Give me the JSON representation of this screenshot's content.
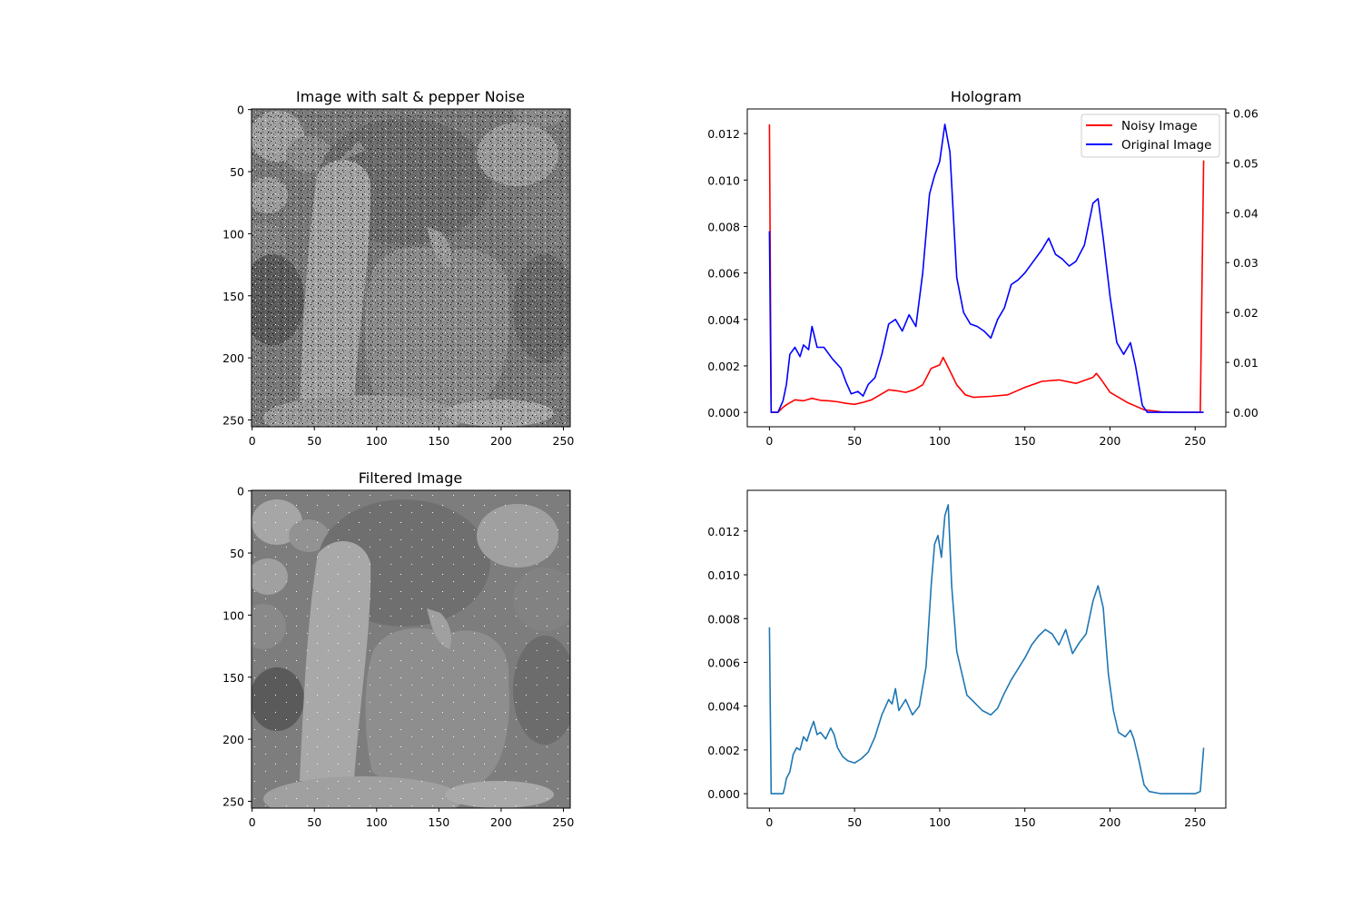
{
  "figure": {
    "top_left_title": "Image with salt & pepper Noise",
    "bottom_left_title": "Filtered Image",
    "top_right_title": "Hologram",
    "bottom_right_title": ""
  },
  "chart_data": [
    {
      "type": "image",
      "title": "Image with salt & pepper Noise",
      "image_description_note": "",
      "x_ticks": [
        "0",
        "50",
        "100",
        "150",
        "200",
        "250"
      ],
      "y_ticks": [
        "0",
        "50",
        "100",
        "150",
        "200",
        "250"
      ],
      "xlim": [
        -0.5,
        255.5
      ],
      "ylim": [
        255.5,
        -0.5
      ],
      "noise": "salt-and-pepper"
    },
    {
      "type": "line",
      "title": "Hologram",
      "twin_axes": true,
      "legend_position": "top-right",
      "x_ticks": [
        "0",
        "50",
        "100",
        "150",
        "200",
        "250"
      ],
      "left_y_ticks": [
        "0.000",
        "0.002",
        "0.004",
        "0.006",
        "0.008",
        "0.010",
        "0.012"
      ],
      "right_y_ticks": [
        "0.00",
        "0.01",
        "0.02",
        "0.03",
        "0.04",
        "0.05",
        "0.06"
      ],
      "xlim": [
        -13,
        268
      ],
      "left_ylim": [
        -0.00062,
        0.01306
      ],
      "right_ylim": [
        -0.0029,
        0.0608
      ],
      "series": [
        {
          "name": "Noisy Image",
          "color": "#ff0000",
          "axis": "right",
          "points": [
            [
              0,
              0.0577
            ],
            [
              1,
              0.0
            ],
            [
              5,
              0.0
            ],
            [
              8,
              0.001
            ],
            [
              10,
              0.0015
            ],
            [
              15,
              0.0025
            ],
            [
              20,
              0.0023
            ],
            [
              25,
              0.0028
            ],
            [
              30,
              0.0024
            ],
            [
              35,
              0.0023
            ],
            [
              40,
              0.0021
            ],
            [
              45,
              0.0018
            ],
            [
              50,
              0.0016
            ],
            [
              55,
              0.002
            ],
            [
              60,
              0.0025
            ],
            [
              65,
              0.0035
            ],
            [
              70,
              0.0045
            ],
            [
              75,
              0.0043
            ],
            [
              80,
              0.004
            ],
            [
              85,
              0.0045
            ],
            [
              90,
              0.0055
            ],
            [
              95,
              0.0088
            ],
            [
              100,
              0.0095
            ],
            [
              102,
              0.011
            ],
            [
              105,
              0.009
            ],
            [
              110,
              0.0055
            ],
            [
              115,
              0.0035
            ],
            [
              120,
              0.003
            ],
            [
              130,
              0.0032
            ],
            [
              140,
              0.0035
            ],
            [
              150,
              0.005
            ],
            [
              160,
              0.0062
            ],
            [
              170,
              0.0065
            ],
            [
              180,
              0.0058
            ],
            [
              190,
              0.007
            ],
            [
              192,
              0.0078
            ],
            [
              195,
              0.0065
            ],
            [
              200,
              0.004
            ],
            [
              210,
              0.002
            ],
            [
              220,
              0.0005
            ],
            [
              230,
              0.0001
            ],
            [
              240,
              0.0
            ],
            [
              250,
              0.0
            ],
            [
              253,
              0.0
            ],
            [
              255,
              0.0505
            ]
          ]
        },
        {
          "name": "Original Image",
          "color": "#0000ff",
          "axis": "left",
          "points": [
            [
              0,
              0.0078
            ],
            [
              1,
              0.0
            ],
            [
              5,
              0.0
            ],
            [
              8,
              0.0005
            ],
            [
              10,
              0.0012
            ],
            [
              12,
              0.0025
            ],
            [
              15,
              0.0028
            ],
            [
              18,
              0.0024
            ],
            [
              20,
              0.0029
            ],
            [
              23,
              0.0027
            ],
            [
              25,
              0.0037
            ],
            [
              28,
              0.0028
            ],
            [
              32,
              0.0028
            ],
            [
              37,
              0.0023
            ],
            [
              42,
              0.0019
            ],
            [
              45,
              0.0013
            ],
            [
              48,
              0.0008
            ],
            [
              52,
              0.0009
            ],
            [
              55,
              0.0007
            ],
            [
              58,
              0.0012
            ],
            [
              62,
              0.0015
            ],
            [
              66,
              0.0025
            ],
            [
              70,
              0.0038
            ],
            [
              74,
              0.004
            ],
            [
              78,
              0.0035
            ],
            [
              82,
              0.0042
            ],
            [
              86,
              0.0037
            ],
            [
              90,
              0.006
            ],
            [
              94,
              0.0094
            ],
            [
              97,
              0.0102
            ],
            [
              100,
              0.0108
            ],
            [
              103,
              0.0124
            ],
            [
              106,
              0.0112
            ],
            [
              110,
              0.0058
            ],
            [
              114,
              0.0043
            ],
            [
              118,
              0.0038
            ],
            [
              122,
              0.0037
            ],
            [
              126,
              0.0035
            ],
            [
              130,
              0.0032
            ],
            [
              134,
              0.004
            ],
            [
              138,
              0.0045
            ],
            [
              142,
              0.0055
            ],
            [
              146,
              0.0057
            ],
            [
              150,
              0.006
            ],
            [
              155,
              0.0065
            ],
            [
              160,
              0.007
            ],
            [
              164,
              0.0075
            ],
            [
              168,
              0.0068
            ],
            [
              172,
              0.0066
            ],
            [
              176,
              0.0063
            ],
            [
              180,
              0.0065
            ],
            [
              185,
              0.0072
            ],
            [
              190,
              0.009
            ],
            [
              193,
              0.0092
            ],
            [
              196,
              0.0075
            ],
            [
              200,
              0.005
            ],
            [
              204,
              0.003
            ],
            [
              208,
              0.0025
            ],
            [
              212,
              0.003
            ],
            [
              215,
              0.002
            ],
            [
              219,
              0.0003
            ],
            [
              222,
              0.0
            ],
            [
              230,
              0.0
            ],
            [
              240,
              0.0
            ],
            [
              250,
              0.0
            ],
            [
              255,
              0.0
            ]
          ]
        }
      ]
    },
    {
      "type": "image",
      "title": "Filtered Image",
      "x_ticks": [
        "0",
        "50",
        "100",
        "150",
        "200",
        "250"
      ],
      "y_ticks": [
        "0",
        "50",
        "100",
        "150",
        "200",
        "250"
      ],
      "xlim": [
        -0.5,
        255.5
      ],
      "ylim": [
        255.5,
        -0.5
      ]
    },
    {
      "type": "line",
      "title": "",
      "x_ticks": [
        "0",
        "50",
        "100",
        "150",
        "200",
        "250"
      ],
      "y_ticks": [
        "0.000",
        "0.002",
        "0.004",
        "0.006",
        "0.008",
        "0.010",
        "0.012"
      ],
      "xlim": [
        -13,
        268
      ],
      "ylim": [
        -0.00066,
        0.01386
      ],
      "series": [
        {
          "color": "#1f77b4",
          "points": [
            [
              0,
              0.0076
            ],
            [
              1,
              0.0
            ],
            [
              5,
              0.0
            ],
            [
              8,
              0.0
            ],
            [
              9,
              0.0003
            ],
            [
              10,
              0.0007
            ],
            [
              12,
              0.001
            ],
            [
              14,
              0.0018
            ],
            [
              16,
              0.0021
            ],
            [
              18,
              0.002
            ],
            [
              20,
              0.0026
            ],
            [
              22,
              0.0024
            ],
            [
              24,
              0.0029
            ],
            [
              26,
              0.0033
            ],
            [
              28,
              0.0027
            ],
            [
              30,
              0.0028
            ],
            [
              33,
              0.0025
            ],
            [
              36,
              0.003
            ],
            [
              38,
              0.0027
            ],
            [
              40,
              0.0021
            ],
            [
              43,
              0.0017
            ],
            [
              46,
              0.0015
            ],
            [
              50,
              0.0014
            ],
            [
              54,
              0.0016
            ],
            [
              58,
              0.0019
            ],
            [
              62,
              0.0026
            ],
            [
              66,
              0.0036
            ],
            [
              70,
              0.0043
            ],
            [
              72,
              0.0041
            ],
            [
              74,
              0.0048
            ],
            [
              76,
              0.0038
            ],
            [
              80,
              0.0043
            ],
            [
              84,
              0.0036
            ],
            [
              88,
              0.004
            ],
            [
              92,
              0.0058
            ],
            [
              95,
              0.0095
            ],
            [
              97,
              0.0114
            ],
            [
              99,
              0.0118
            ],
            [
              101,
              0.0108
            ],
            [
              103,
              0.0127
            ],
            [
              105,
              0.0132
            ],
            [
              107,
              0.0095
            ],
            [
              110,
              0.0065
            ],
            [
              113,
              0.0055
            ],
            [
              116,
              0.0045
            ],
            [
              120,
              0.0042
            ],
            [
              125,
              0.0038
            ],
            [
              130,
              0.0036
            ],
            [
              134,
              0.0039
            ],
            [
              138,
              0.0046
            ],
            [
              142,
              0.0052
            ],
            [
              146,
              0.0057
            ],
            [
              150,
              0.0062
            ],
            [
              154,
              0.0068
            ],
            [
              158,
              0.0072
            ],
            [
              162,
              0.0075
            ],
            [
              166,
              0.0073
            ],
            [
              170,
              0.0068
            ],
            [
              174,
              0.0075
            ],
            [
              178,
              0.0064
            ],
            [
              182,
              0.0069
            ],
            [
              186,
              0.0073
            ],
            [
              190,
              0.0088
            ],
            [
              193,
              0.0095
            ],
            [
              196,
              0.0085
            ],
            [
              199,
              0.0055
            ],
            [
              202,
              0.0038
            ],
            [
              205,
              0.0028
            ],
            [
              209,
              0.0026
            ],
            [
              212,
              0.0029
            ],
            [
              214,
              0.0025
            ],
            [
              217,
              0.0015
            ],
            [
              220,
              0.0004
            ],
            [
              223,
              0.0001
            ],
            [
              230,
              0.0
            ],
            [
              240,
              0.0
            ],
            [
              250,
              0.0
            ],
            [
              253,
              0.0001
            ],
            [
              255,
              0.0021
            ]
          ]
        }
      ]
    }
  ]
}
